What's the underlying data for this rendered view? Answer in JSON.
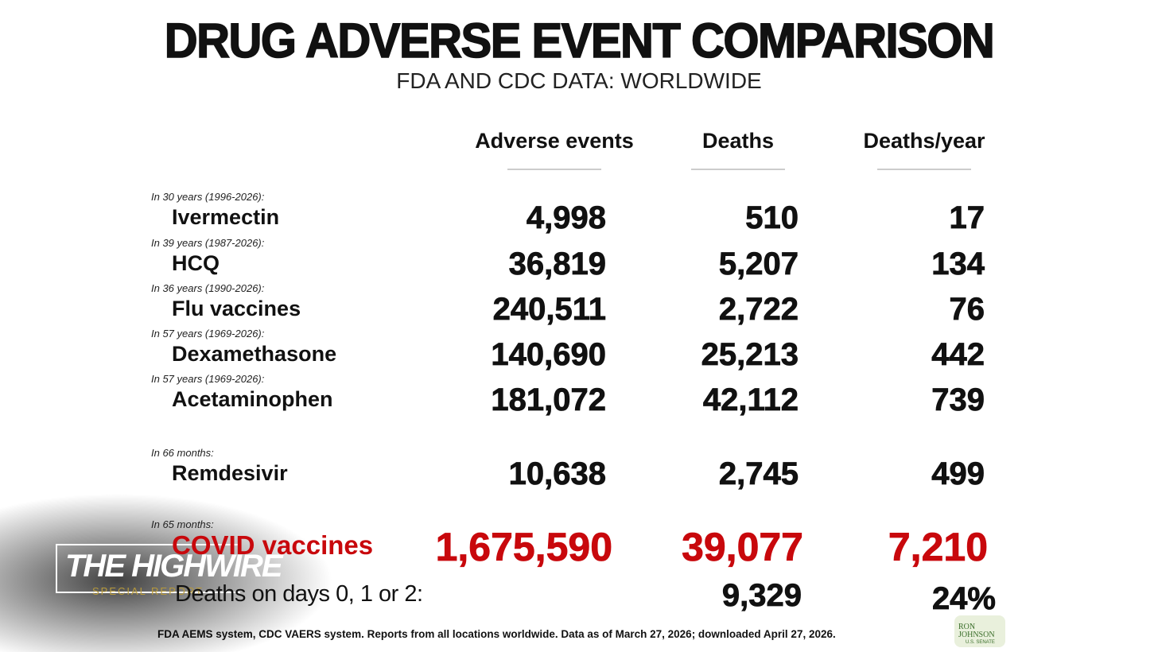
{
  "title": "DRUG ADVERSE EVENT COMPARISON",
  "subtitle": "FDA AND CDC DATA: WORLDWIDE",
  "columns": [
    "Adverse events",
    "Deaths",
    "Deaths/year"
  ],
  "rows": [
    {
      "period": "In 30 years (1996-2026):",
      "name": "Ivermectin",
      "adverse_events": "4,998",
      "deaths": "510",
      "deaths_per_year": "17"
    },
    {
      "period": "In 39 years (1987-2026):",
      "name": "HCQ",
      "adverse_events": "36,819",
      "deaths": "5,207",
      "deaths_per_year": "134"
    },
    {
      "period": "In 36 years (1990-2026):",
      "name": "Flu vaccines",
      "adverse_events": "240,511",
      "deaths": "2,722",
      "deaths_per_year": "76"
    },
    {
      "period": "In 57 years (1969-2026):",
      "name": "Dexamethasone",
      "adverse_events": "140,690",
      "deaths": "25,213",
      "deaths_per_year": "442"
    },
    {
      "period": "In 57 years (1969-2026):",
      "name": "Acetaminophen",
      "adverse_events": "181,072",
      "deaths": "42,112",
      "deaths_per_year": "739"
    },
    {
      "period": "In 66 months:",
      "name": "Remdesivir",
      "adverse_events": "10,638",
      "deaths": "2,745",
      "deaths_per_year": "499"
    },
    {
      "period": "In 65 months:",
      "name": "COVID vaccines",
      "adverse_events": "1,675,590",
      "deaths": "39,077",
      "deaths_per_year": "7,210",
      "color": "#c8080c"
    }
  ],
  "early_deaths": {
    "label": "Deaths on days 0, 1 or 2:",
    "deaths": "9,329",
    "deaths_per_year": "24%"
  },
  "footnote": "FDA AEMS system, CDC VAERS system. Reports from all locations worldwide. Data as of March 27, 2026; downloaded April 27, 2026.",
  "watermark": {
    "brand": "THE HIGHWIRE",
    "tagline": "SPECIAL REPORT"
  },
  "logo": {
    "name": "RON JOHNSON",
    "office": "U.S. SENATE"
  }
}
